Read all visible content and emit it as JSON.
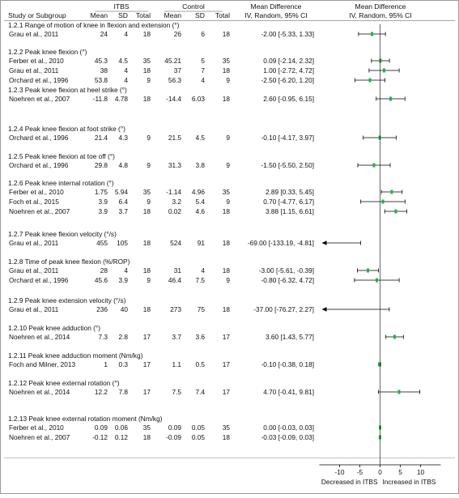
{
  "chart_data": {
    "type": "forest",
    "columns": {
      "study": "Study or Subgroup",
      "itbs": "ITBS",
      "control": "Control",
      "mean": "Mean",
      "sd": "SD",
      "total": "Total",
      "md_title": "Mean Difference",
      "md_sub": "IV, Random, 95% CI"
    },
    "axis": {
      "ticks": [
        -10,
        -5,
        0,
        5,
        10
      ],
      "tick_labels": [
        "-10",
        "-5",
        "0",
        "5",
        "10"
      ],
      "xlim": [
        -15,
        15
      ],
      "left_label": "Decreased in ITBS",
      "right_label": "Increased in ITBS"
    },
    "groups": [
      {
        "title": "1.2.1 Range of motion of knee in flexion and extension (°)",
        "studies": [
          {
            "name": "Grau et al., 2011",
            "m1": "24",
            "sd1": "4",
            "n1": "18",
            "m2": "26",
            "sd2": "6",
            "n2": "18",
            "ci": "-2.00 [-5.33, 1.33]",
            "md": -2.0,
            "lo": -5.33,
            "hi": 1.33
          }
        ]
      },
      {
        "title": "1.2.2 Peak knee flexion (°)",
        "studies": [
          {
            "name": "Ferber et al., 2010",
            "m1": "45.3",
            "sd1": "4.5",
            "n1": "35",
            "m2": "45.21",
            "sd2": "5",
            "n2": "35",
            "ci": "0.09 [-2.14, 2.32]",
            "md": 0.09,
            "lo": -2.14,
            "hi": 2.32
          },
          {
            "name": "Grau et al., 2011",
            "m1": "38",
            "sd1": "4",
            "n1": "18",
            "m2": "37",
            "sd2": "7",
            "n2": "18",
            "ci": "1.00 [-2.72, 4.72]",
            "md": 1.0,
            "lo": -2.72,
            "hi": 4.72
          },
          {
            "name": "Orchard et al., 1996",
            "m1": "53.8",
            "sd1": "4",
            "n1": "9",
            "m2": "56.3",
            "sd2": "4",
            "n2": "9",
            "ci": "-2.50 [-6.20, 1.20]",
            "md": -2.5,
            "lo": -6.2,
            "hi": 1.2
          }
        ]
      },
      {
        "title": "1.2.3 Peak knee flexion at heel strike (°)",
        "studies": [
          {
            "name": "Noehren et al., 2007",
            "m1": "-11.8",
            "sd1": "4.78",
            "n1": "18",
            "m2": "-14.4",
            "sd2": "6.03",
            "n2": "18",
            "ci": "2.60 [-0.95, 6.15]",
            "md": 2.6,
            "lo": -0.95,
            "hi": 6.15
          }
        ]
      },
      {
        "title": "1.2.4 Peak knee flexion at foot strike (°)",
        "studies": [
          {
            "name": "Orchard et al., 1996",
            "m1": "21.4",
            "sd1": "4.3",
            "n1": "9",
            "m2": "21.5",
            "sd2": "4.5",
            "n2": "9",
            "ci": "-0.10 [-4.17, 3.97]",
            "md": -0.1,
            "lo": -4.17,
            "hi": 3.97
          }
        ]
      },
      {
        "title": "1.2.5 Peak knee flexion at toe off (°)",
        "studies": [
          {
            "name": "Orchard et al., 1996",
            "m1": "29.8",
            "sd1": "4.8",
            "n1": "9",
            "m2": "31.3",
            "sd2": "3.8",
            "n2": "9",
            "ci": "-1.50 [-5.50, 2.50]",
            "md": -1.5,
            "lo": -5.5,
            "hi": 2.5
          }
        ]
      },
      {
        "title": "1.2.6 Peak knee internal rotation (°)",
        "studies": [
          {
            "name": "Ferber et al., 2010",
            "m1": "1.75",
            "sd1": "5.94",
            "n1": "35",
            "m2": "-1.14",
            "sd2": "4.96",
            "n2": "35",
            "ci": "2.89 [0.33, 5.45]",
            "md": 2.89,
            "lo": 0.33,
            "hi": 5.45
          },
          {
            "name": "Foch et al., 2015",
            "m1": "3.9",
            "sd1": "6.4",
            "n1": "9",
            "m2": "3.2",
            "sd2": "5.4",
            "n2": "9",
            "ci": "0.70 [-4.77, 6.17]",
            "md": 0.7,
            "lo": -4.77,
            "hi": 6.17
          },
          {
            "name": "Noehren et al., 2007",
            "m1": "3.9",
            "sd1": "3.7",
            "n1": "18",
            "m2": "0.02",
            "sd2": "4.6",
            "n2": "18",
            "ci": "3.88 [1.15, 6.61]",
            "md": 3.88,
            "lo": 1.15,
            "hi": 6.61
          }
        ]
      },
      {
        "title": "1.2.7 Peak knee flexion velocity (°/s)",
        "studies": [
          {
            "name": "Grau et al., 2011",
            "m1": "455",
            "sd1": "105",
            "n1": "18",
            "m2": "524",
            "sd2": "91",
            "n2": "18",
            "ci": "-69.00 [-133.19, -4.81]",
            "md": -69.0,
            "lo": -133.19,
            "hi": -4.81
          }
        ]
      },
      {
        "title": "1.2.8 Time of peak knee flexion (%/ROP)",
        "studies": [
          {
            "name": "Grau et al., 2011",
            "m1": "28",
            "sd1": "4",
            "n1": "18",
            "m2": "31",
            "sd2": "4",
            "n2": "18",
            "ci": "-3.00 [-5.61, -0.39]",
            "md": -3.0,
            "lo": -5.61,
            "hi": -0.39
          },
          {
            "name": "Orchard et al., 1996",
            "m1": "45.6",
            "sd1": "3.9",
            "n1": "9",
            "m2": "46.4",
            "sd2": "7.5",
            "n2": "9",
            "ci": "-0.80 [-6.32, 4.72]",
            "md": -0.8,
            "lo": -6.32,
            "hi": 4.72
          }
        ]
      },
      {
        "title": "1.2.9 Peak knee extension velocity (°/s)",
        "studies": [
          {
            "name": "Grau et al., 2011",
            "m1": "236",
            "sd1": "40",
            "n1": "18",
            "m2": "273",
            "sd2": "75",
            "n2": "18",
            "ci": "-37.00 [-76.27, 2.27]",
            "md": -37.0,
            "lo": -76.27,
            "hi": 2.27
          }
        ]
      },
      {
        "title": "1.2.10 Peak knee adduction (°)",
        "studies": [
          {
            "name": "Noehren et al., 2014",
            "m1": "7.3",
            "sd1": "2.8",
            "n1": "17",
            "m2": "3.7",
            "sd2": "3.6",
            "n2": "17",
            "ci": "3.60 [1.43, 5.77]",
            "md": 3.6,
            "lo": 1.43,
            "hi": 5.77
          }
        ]
      },
      {
        "title": "1.2.11 Peak knee adduction moment (Nm/kg)",
        "studies": [
          {
            "name": "Foch and Milner, 2013",
            "m1": "1",
            "sd1": "0.3",
            "n1": "17",
            "m2": "1.1",
            "sd2": "0.5",
            "n2": "17",
            "ci": "-0.10 [-0.38, 0.18]",
            "md": -0.1,
            "lo": -0.38,
            "hi": 0.18
          }
        ]
      },
      {
        "title": "1.2.12 Peak knee external rotation (°)",
        "studies": [
          {
            "name": "Noehren et al., 2014",
            "m1": "12.2",
            "sd1": "7.8",
            "n1": "17",
            "m2": "7.5",
            "sd2": "7.4",
            "n2": "17",
            "ci": "4.70 [-0.41, 9.81]",
            "md": 4.7,
            "lo": -0.41,
            "hi": 9.81
          }
        ]
      },
      {
        "title": "1.2.13 Peak knee external rotation moment (Nm/kg)",
        "studies": [
          {
            "name": "Ferber et al., 2010",
            "m1": "0.09",
            "sd1": "0.06",
            "n1": "35",
            "m2": "0.09",
            "sd2": "0.05",
            "n2": "35",
            "ci": "0.00 [-0.03, 0.03]",
            "md": 0.0,
            "lo": -0.03,
            "hi": 0.03
          },
          {
            "name": "Noehren et al., 2007",
            "m1": "-0.12",
            "sd1": "0.12",
            "n1": "18",
            "m2": "-0.09",
            "sd2": "0.05",
            "n2": "18",
            "ci": "-0.03 [-0.09, 0.03]",
            "md": -0.03,
            "lo": -0.09,
            "hi": 0.03
          }
        ]
      }
    ],
    "colors": {
      "marker": "#22b14c",
      "line": "#000000",
      "rule": "#888888"
    }
  }
}
